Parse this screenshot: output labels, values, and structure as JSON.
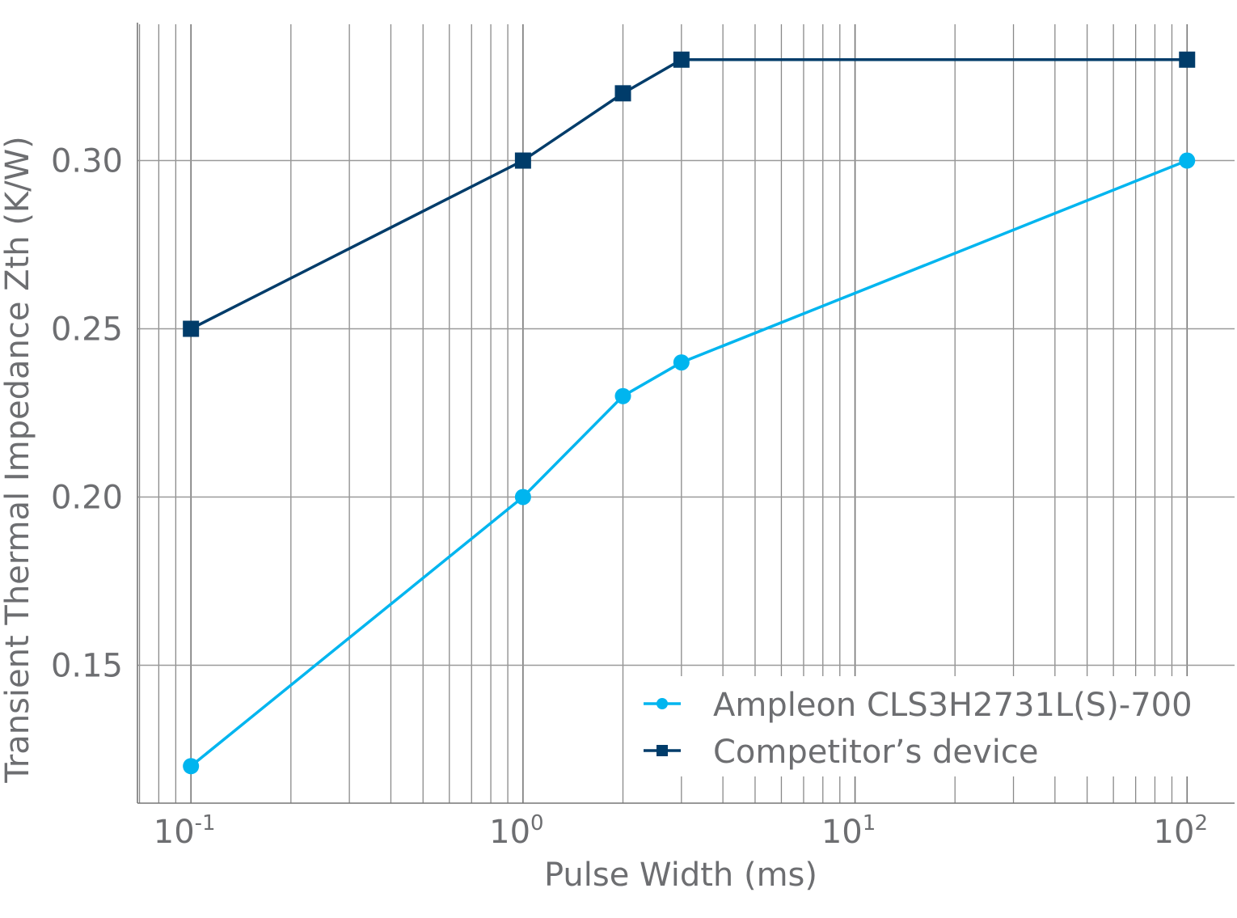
{
  "chart_data": {
    "type": "line",
    "title": "",
    "xlabel": "Pulse Width (ms)",
    "ylabel": "Transient Thermal Impedance Zth (K/W)",
    "x_scale": "log",
    "xlim": [
      0.069,
      139
    ],
    "ylim": [
      0.109,
      0.341
    ],
    "x_ticks": [
      {
        "value": 0.1,
        "base": "10",
        "exp": "-1"
      },
      {
        "value": 1,
        "base": "10",
        "exp": "0"
      },
      {
        "value": 10,
        "base": "10",
        "exp": "1"
      },
      {
        "value": 100,
        "base": "10",
        "exp": "2"
      }
    ],
    "y_ticks": [
      {
        "value": 0.15,
        "label": "0.15"
      },
      {
        "value": 0.2,
        "label": "0.20"
      },
      {
        "value": 0.25,
        "label": "0.25"
      },
      {
        "value": 0.3,
        "label": "0.30"
      }
    ],
    "grid": true,
    "legend_position": "bottom-right",
    "series": [
      {
        "name": "Ampleon CLS3H2731L(S)-700",
        "color": "#00b5ef",
        "marker": "circle",
        "x": [
          0.1,
          1,
          2,
          3,
          100
        ],
        "y": [
          0.12,
          0.2,
          0.23,
          0.24,
          0.3
        ]
      },
      {
        "name": "Competitor’s device",
        "color": "#003c6a",
        "marker": "square",
        "x": [
          0.1,
          1,
          2,
          3,
          100
        ],
        "y": [
          0.25,
          0.3,
          0.32,
          0.33,
          0.33
        ]
      }
    ]
  }
}
